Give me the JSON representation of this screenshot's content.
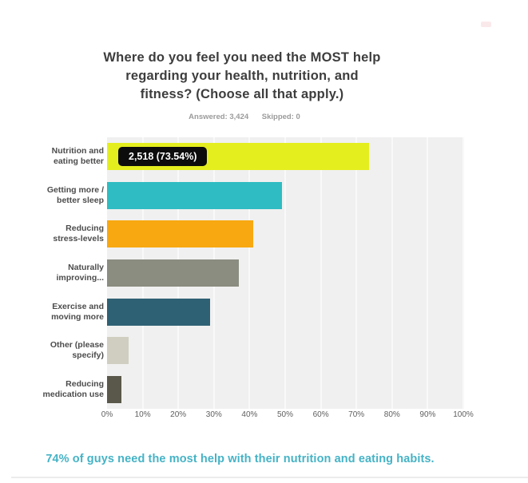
{
  "header": {
    "title_lines": [
      "Where do you feel you need the MOST help",
      "regarding your health, nutrition, and",
      "fitness? (Choose all that apply.)"
    ],
    "answered_label": "Answered: 3,424",
    "skipped_label": "Skipped: 0"
  },
  "chart_data": {
    "type": "bar",
    "orientation": "horizontal",
    "title": "Where do you feel you need the MOST help regarding your health, nutrition, and fitness? (Choose all that apply.)",
    "answered": "3,424",
    "skipped": "0",
    "categories": [
      [
        "Nutrition and",
        "eating better"
      ],
      [
        "Getting more /",
        "better sleep"
      ],
      [
        "Reducing",
        "stress-levels"
      ],
      [
        "Naturally",
        "improving..."
      ],
      [
        "Exercise and",
        "moving more"
      ],
      [
        "Other (please",
        "specify)"
      ],
      [
        "Reducing",
        "medication use"
      ]
    ],
    "values": [
      73.54,
      49,
      41,
      37,
      29,
      6,
      4
    ],
    "colors": [
      "#e4ee1f",
      "#2fbcc3",
      "#f8a811",
      "#8a8d7f",
      "#2f6174",
      "#cfcec0",
      "#5a584a"
    ],
    "annotations": [
      {
        "bar_index": 0,
        "label": "2,518 (73.54%)",
        "count": 2518,
        "percent": 73.54
      }
    ],
    "x_ticks": [
      "0%",
      "10%",
      "20%",
      "30%",
      "40%",
      "50%",
      "60%",
      "70%",
      "80%",
      "90%",
      "100%"
    ],
    "xlim": [
      0,
      100
    ],
    "grid": true,
    "plot_background": "#f0f0f0",
    "xlabel": "",
    "ylabel": "",
    "legend": false
  },
  "caption": {
    "text": "74% of guys need the most help with their nutrition and eating habits.",
    "color": "#45b3c6"
  }
}
